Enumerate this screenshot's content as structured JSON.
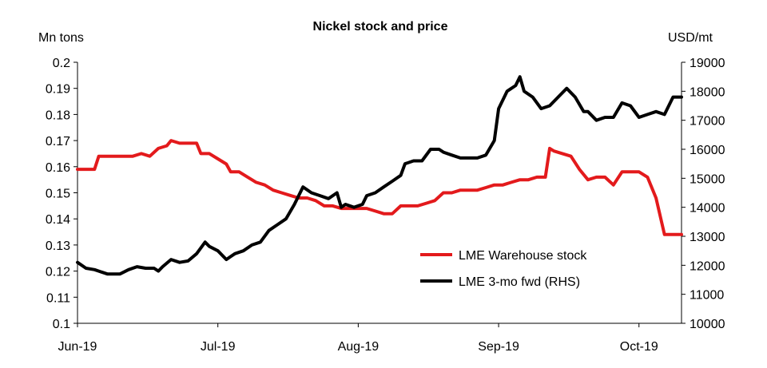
{
  "chart_data": {
    "type": "line",
    "title": "Nickel stock and price",
    "left_axis_unit": "Mn tons",
    "right_axis_unit": "USD/mt",
    "ylim_left": [
      0.1,
      0.2
    ],
    "yticks_left": [
      "0.2",
      "0.19",
      "0.18",
      "0.17",
      "0.16",
      "0.15",
      "0.14",
      "0.13",
      "0.12",
      "0.11",
      "0.1"
    ],
    "ylim_right": [
      10000,
      19000
    ],
    "yticks_right": [
      "19000",
      "18000",
      "17000",
      "16000",
      "15000",
      "14000",
      "13000",
      "12000",
      "11000",
      "10000"
    ],
    "x_range_days": [
      0,
      142
    ],
    "x_ticks": [
      {
        "label": "Jun-19",
        "day": 0
      },
      {
        "label": "Jul-19",
        "day": 33
      },
      {
        "label": "Aug-19",
        "day": 66
      },
      {
        "label": "Sep-19",
        "day": 99
      },
      {
        "label": "Oct-19",
        "day": 132
      }
    ],
    "legend": {
      "placement": "center-right",
      "entries": [
        "LME Warehouse stock",
        "LME 3-mo fwd (RHS)"
      ]
    },
    "series": [
      {
        "name": "LME Warehouse stock",
        "axis": "left",
        "color": "#e31a1c",
        "x": [
          0,
          2,
          4,
          5,
          7,
          10,
          13,
          15,
          17,
          19,
          21,
          22,
          24,
          26,
          28,
          29,
          31,
          33,
          35,
          36,
          38,
          40,
          42,
          44,
          46,
          48,
          50,
          52,
          54,
          56,
          58,
          60,
          62,
          64,
          66,
          68,
          70,
          72,
          74,
          76,
          78,
          80,
          82,
          84,
          86,
          88,
          90,
          92,
          94,
          96,
          98,
          100,
          102,
          104,
          106,
          108,
          110,
          111,
          112,
          114,
          116,
          118,
          120,
          122,
          124,
          126,
          128,
          130,
          132,
          134,
          136,
          138,
          140,
          142
        ],
        "values": [
          0.159,
          0.159,
          0.159,
          0.164,
          0.164,
          0.164,
          0.164,
          0.165,
          0.164,
          0.167,
          0.168,
          0.17,
          0.169,
          0.169,
          0.169,
          0.165,
          0.165,
          0.163,
          0.161,
          0.158,
          0.158,
          0.156,
          0.154,
          0.153,
          0.151,
          0.15,
          0.149,
          0.148,
          0.148,
          0.147,
          0.145,
          0.145,
          0.144,
          0.144,
          0.144,
          0.144,
          0.143,
          0.142,
          0.142,
          0.145,
          0.145,
          0.145,
          0.146,
          0.147,
          0.15,
          0.15,
          0.151,
          0.151,
          0.151,
          0.152,
          0.153,
          0.153,
          0.154,
          0.155,
          0.155,
          0.156,
          0.156,
          0.167,
          0.166,
          0.165,
          0.164,
          0.159,
          0.155,
          0.156,
          0.156,
          0.153,
          0.158,
          0.158,
          0.158,
          0.156,
          0.148,
          0.134,
          0.134,
          0.134
        ]
      },
      {
        "name": "LME 3-mo fwd (RHS)",
        "axis": "right",
        "color": "#000000",
        "x": [
          0,
          2,
          4,
          5,
          7,
          9,
          10,
          12,
          14,
          16,
          18,
          19,
          20,
          22,
          24,
          26,
          28,
          30,
          31,
          33,
          35,
          36,
          37,
          39,
          41,
          43,
          45,
          47,
          49,
          51,
          53,
          55,
          57,
          59,
          61,
          62,
          63,
          65,
          67,
          68,
          70,
          72,
          74,
          76,
          77,
          79,
          81,
          83,
          85,
          86,
          88,
          90,
          92,
          94,
          96,
          98,
          99,
          100,
          101,
          103,
          104,
          105,
          107,
          109,
          111,
          113,
          115,
          117,
          119,
          120,
          122,
          124,
          126,
          128,
          130,
          132,
          134,
          136,
          138,
          140,
          142
        ],
        "values": [
          12100,
          11900,
          11850,
          11800,
          11700,
          11700,
          11700,
          11850,
          11950,
          11900,
          11900,
          11800,
          11950,
          12200,
          12100,
          12150,
          12400,
          12800,
          12650,
          12500,
          12200,
          12300,
          12400,
          12500,
          12700,
          12800,
          13200,
          13400,
          13600,
          14100,
          14700,
          14500,
          14400,
          14300,
          14500,
          14000,
          14100,
          14000,
          14100,
          14400,
          14500,
          14700,
          14900,
          15100,
          15500,
          15600,
          15600,
          16000,
          16000,
          15900,
          15800,
          15700,
          15700,
          15700,
          15800,
          16300,
          17400,
          17700,
          18000,
          18200,
          18500,
          18000,
          17800,
          17400,
          17500,
          17800,
          18100,
          17800,
          17300,
          17300,
          17000,
          17100,
          17100,
          17600,
          17500,
          17100,
          17200,
          17300,
          17200,
          17800,
          17800
        ]
      }
    ]
  }
}
